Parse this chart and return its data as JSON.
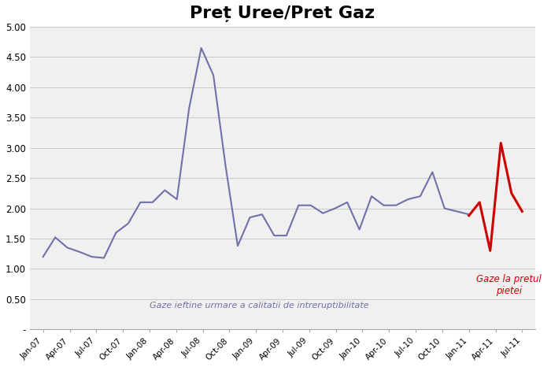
{
  "title": "Preț Uree/Pret Gaz",
  "title_fontsize": 16,
  "title_fontweight": "bold",
  "background_color": "#ffffff",
  "plot_bg_color": "#f0f0f0",
  "xlabels": [
    "Jan-07",
    "Apr-07",
    "Jul-07",
    "Oct-07",
    "Jan-08",
    "Apr-08",
    "Jul-08",
    "Oct-08",
    "Jan-09",
    "Apr-09",
    "Jul-09",
    "Oct-09",
    "Jan-10",
    "Apr-10",
    "Jul-10",
    "Oct-10",
    "Jan-11",
    "Apr-11",
    "Jul-11"
  ],
  "ylim": [
    0,
    5.0
  ],
  "yticks": [
    0.0,
    0.5,
    1.0,
    1.5,
    2.0,
    2.5,
    3.0,
    3.5,
    4.0,
    4.5,
    5.0
  ],
  "ytick_labels": [
    "-",
    "0.50",
    "1.00",
    "1.50",
    "2.00",
    "2.50",
    "3.00",
    "3.50",
    "4.00",
    "4.50",
    "5.00"
  ],
  "purple_line_color": "#7070AA",
  "red_line_color": "#CC0000",
  "purple_values": [
    1.2,
    1.52,
    1.35,
    1.28,
    1.2,
    1.18,
    1.6,
    1.75,
    2.1,
    2.1,
    2.3,
    2.15,
    3.65,
    4.65,
    4.2,
    2.7,
    1.38,
    1.85,
    1.9,
    1.55,
    1.55,
    2.05,
    2.05,
    1.92,
    2.0,
    2.1,
    1.65,
    2.2,
    2.05,
    2.05,
    2.15,
    2.2,
    2.6,
    2.0,
    1.95,
    1.9
  ],
  "red_values": [
    1.88,
    2.1,
    1.3,
    3.08,
    2.25,
    1.95
  ],
  "annotation_blue": "Gaze ieftine urmare a calitatii de intreruptibilitate",
  "annotation_blue_color": "#7070AA",
  "annotation_red": "Gaze la pretul\npietei",
  "annotation_red_color": "#CC0000",
  "grid_color": "#cccccc",
  "spine_color": "#aaaaaa"
}
